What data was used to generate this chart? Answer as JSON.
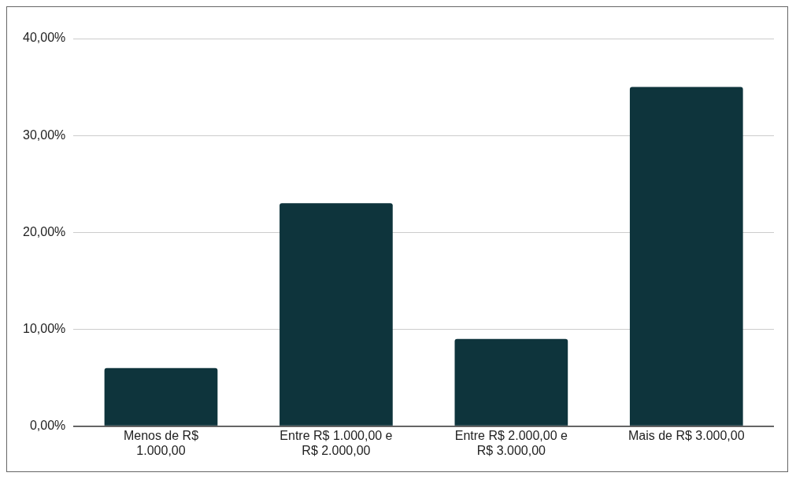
{
  "chart_data": {
    "type": "bar",
    "categories": [
      "Menos de R$ 1.000,00",
      "Entre R$ 1.000,00 e R$ 2.000,00",
      "Entre R$ 2.000,00 e R$ 3.000,00",
      "Mais de R$ 3.000,00"
    ],
    "values": [
      6,
      23,
      9,
      35
    ],
    "color": "#0e343c",
    "ylim": [
      0,
      40
    ],
    "yticks": [
      {
        "value": 0,
        "label": "0,00%"
      },
      {
        "value": 10,
        "label": "10,00%"
      },
      {
        "value": 20,
        "label": "20,00%"
      },
      {
        "value": 30,
        "label": "30,00%"
      },
      {
        "value": 40,
        "label": "40,00%"
      }
    ],
    "grid": "y",
    "legend": false
  }
}
